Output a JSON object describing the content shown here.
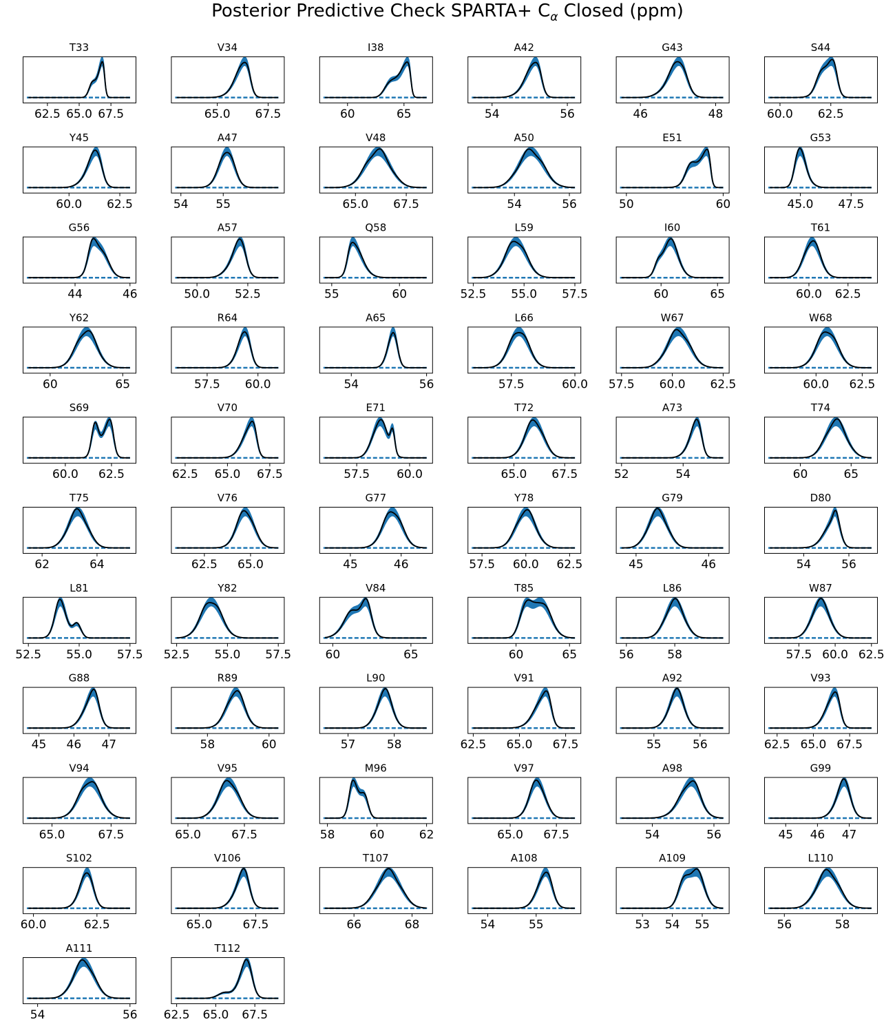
{
  "figure": {
    "title_main": "Posterior Predictive Check SPARTA+ C",
    "title_sub": "α",
    "title_tail": " Closed (ppm)"
  },
  "colors": {
    "band": "#1f77b4",
    "observed": "#000000"
  },
  "chart_data": [
    {
      "type": "area",
      "title": "T33",
      "xlim": [
        61.0,
        69.0
      ],
      "ticks": [
        "62.5",
        "65.0",
        "67.5"
      ],
      "mode": 67.0,
      "sd": 0.45,
      "skew": -3.5,
      "bumps": [
        {
          "x": 66.0,
          "h": 0.25,
          "sd": 0.25
        }
      ]
    },
    {
      "type": "area",
      "title": "V34",
      "xlim": [
        63.0,
        68.0
      ],
      "ticks": [
        "65.0",
        "67.5"
      ],
      "mode": 66.6,
      "sd": 0.55,
      "skew": -3.0,
      "bumps": []
    },
    {
      "type": "area",
      "title": "I38",
      "xlim": [
        58.0,
        67.0
      ],
      "ticks": [
        "60",
        "65"
      ],
      "mode": 65.6,
      "sd": 0.8,
      "skew": -5.0,
      "bumps": [
        {
          "x": 63.8,
          "h": 0.35,
          "sd": 0.5
        }
      ]
    },
    {
      "type": "area",
      "title": "A42",
      "xlim": [
        53.5,
        56.2
      ],
      "ticks": [
        "54",
        "56"
      ],
      "mode": 55.3,
      "sd": 0.32,
      "skew": -3.0,
      "bumps": []
    },
    {
      "type": "area",
      "title": "G43",
      "xlim": [
        45.5,
        48.2
      ],
      "ticks": [
        "46",
        "48"
      ],
      "mode": 47.2,
      "sd": 0.35,
      "skew": -2.0,
      "bumps": []
    },
    {
      "type": "area",
      "title": "S44",
      "xlim": [
        59.5,
        64.5
      ],
      "ticks": [
        "60.0",
        "62.5"
      ],
      "mode": 62.8,
      "sd": 0.55,
      "skew": -3.0,
      "bumps": [
        {
          "x": 62.0,
          "h": 0.25,
          "sd": 0.25
        }
      ]
    },
    {
      "type": "area",
      "title": "Y45",
      "xlim": [
        58.0,
        63.0
      ],
      "ticks": [
        "60.0",
        "62.5"
      ],
      "mode": 61.6,
      "sd": 0.55,
      "skew": -2.5,
      "bumps": []
    },
    {
      "type": "area",
      "title": "A47",
      "xlim": [
        53.9,
        56.3
      ],
      "ticks": [
        "54",
        "55"
      ],
      "mode": 55.2,
      "sd": 0.22,
      "skew": -1.0,
      "bumps": []
    },
    {
      "type": "area",
      "title": "V48",
      "xlim": [
        63.5,
        68.5
      ],
      "ticks": [
        "65.0",
        "67.5"
      ],
      "mode": 66.1,
      "sd": 0.6,
      "skew": 0.0,
      "bumps": []
    },
    {
      "type": "area",
      "title": "A50",
      "xlim": [
        52.5,
        56.2
      ],
      "ticks": [
        "54",
        "56"
      ],
      "mode": 54.6,
      "sd": 0.45,
      "skew": 0.0,
      "bumps": []
    },
    {
      "type": "area",
      "title": "E51",
      "xlim": [
        49.5,
        60.0
      ],
      "ticks": [
        "50",
        "60"
      ],
      "mode": 58.7,
      "sd": 1.3,
      "skew": -6.0,
      "bumps": [
        {
          "x": 56.5,
          "h": 0.3,
          "sd": 0.5
        }
      ]
    },
    {
      "type": "area",
      "title": "G53",
      "xlim": [
        43.5,
        48.5
      ],
      "ticks": [
        "45.0",
        "47.5"
      ],
      "mode": 44.7,
      "sd": 0.45,
      "skew": 2.5,
      "bumps": [
        {
          "x": 45.1,
          "h": 0.3,
          "sd": 0.2
        }
      ]
    },
    {
      "type": "area",
      "title": "G56",
      "xlim": [
        42.3,
        46.0
      ],
      "ticks": [
        "44",
        "46"
      ],
      "mode": 44.9,
      "sd": 0.28,
      "skew": 0.0,
      "bumps": [
        {
          "x": 44.6,
          "h": 0.3,
          "sd": 0.15
        }
      ]
    },
    {
      "type": "area",
      "title": "A57",
      "xlim": [
        49.0,
        54.0
      ],
      "ticks": [
        "50.0",
        "52.5"
      ],
      "mode": 52.4,
      "sd": 0.55,
      "skew": -2.5,
      "bumps": []
    },
    {
      "type": "area",
      "title": "Q58",
      "xlim": [
        54.5,
        62.0
      ],
      "ticks": [
        "55",
        "60"
      ],
      "mode": 56.2,
      "sd": 0.8,
      "skew": 3.0,
      "bumps": []
    },
    {
      "type": "area",
      "title": "L59",
      "xlim": [
        52.5,
        57.5
      ],
      "ticks": [
        "52.5",
        "55.0",
        "57.5"
      ],
      "mode": 54.4,
      "sd": 0.55,
      "skew": 0.5,
      "bumps": []
    },
    {
      "type": "area",
      "title": "I60",
      "xlim": [
        56.5,
        65.5
      ],
      "ticks": [
        "60",
        "65"
      ],
      "mode": 60.8,
      "sd": 0.7,
      "skew": 0.0,
      "bumps": [
        {
          "x": 59.7,
          "h": 0.1,
          "sd": 0.3
        }
      ]
    },
    {
      "type": "area",
      "title": "T61",
      "xlim": [
        57.5,
        64.0
      ],
      "ticks": [
        "60.0",
        "62.5"
      ],
      "mode": 60.0,
      "sd": 0.55,
      "skew": 0.5,
      "bumps": []
    },
    {
      "type": "area",
      "title": "Y62",
      "xlim": [
        58.5,
        65.5
      ],
      "ticks": [
        "60",
        "65"
      ],
      "mode": 62.5,
      "sd": 0.7,
      "skew": 0.0,
      "bumps": []
    },
    {
      "type": "area",
      "title": "R64",
      "xlim": [
        56.0,
        61.0
      ],
      "ticks": [
        "57.5",
        "60.0"
      ],
      "mode": 59.6,
      "sd": 0.45,
      "skew": -2.0,
      "bumps": []
    },
    {
      "type": "area",
      "title": "A65",
      "xlim": [
        53.3,
        56.0
      ],
      "ticks": [
        "54",
        "56"
      ],
      "mode": 55.2,
      "sd": 0.17,
      "skew": -1.5,
      "bumps": []
    },
    {
      "type": "area",
      "title": "L66",
      "xlim": [
        56.0,
        60.0
      ],
      "ticks": [
        "57.5",
        "60.0"
      ],
      "mode": 57.8,
      "sd": 0.38,
      "skew": 0.0,
      "bumps": []
    },
    {
      "type": "area",
      "title": "W67",
      "xlim": [
        57.5,
        62.5
      ],
      "ticks": [
        "57.5",
        "60.0",
        "62.5"
      ],
      "mode": 60.3,
      "sd": 0.55,
      "skew": 0.0,
      "bumps": []
    },
    {
      "type": "area",
      "title": "W68",
      "xlim": [
        57.5,
        63.0
      ],
      "ticks": [
        "60.0",
        "62.5"
      ],
      "mode": 60.6,
      "sd": 0.55,
      "skew": 0.0,
      "bumps": []
    },
    {
      "type": "area",
      "title": "S69",
      "xlim": [
        58.0,
        63.5
      ],
      "ticks": [
        "60.0",
        "62.5"
      ],
      "mode": 62.6,
      "sd": 0.5,
      "skew": -3.0,
      "bumps": [
        {
          "x": 61.6,
          "h": 0.6,
          "sd": 0.18
        }
      ]
    },
    {
      "type": "area",
      "title": "V70",
      "xlim": [
        62.0,
        68.0
      ],
      "ticks": [
        "62.5",
        "65.0",
        "67.5"
      ],
      "mode": 66.7,
      "sd": 0.6,
      "skew": -3.0,
      "bumps": []
    },
    {
      "type": "area",
      "title": "E71",
      "xlim": [
        56.0,
        60.8
      ],
      "ticks": [
        "57.5",
        "60.0"
      ],
      "mode": 58.6,
      "sd": 0.35,
      "skew": 0.0,
      "bumps": [
        {
          "x": 59.2,
          "h": 0.3,
          "sd": 0.1
        }
      ]
    },
    {
      "type": "area",
      "title": "T72",
      "xlim": [
        63.0,
        68.0
      ],
      "ticks": [
        "65.0",
        "67.5"
      ],
      "mode": 66.0,
      "sd": 0.45,
      "skew": 0.0,
      "bumps": []
    },
    {
      "type": "area",
      "title": "A73",
      "xlim": [
        52.0,
        55.3
      ],
      "ticks": [
        "52",
        "54"
      ],
      "mode": 54.6,
      "sd": 0.3,
      "skew": -2.5,
      "bumps": []
    },
    {
      "type": "area",
      "title": "T74",
      "xlim": [
        57.0,
        67.0
      ],
      "ticks": [
        "60",
        "65"
      ],
      "mode": 63.5,
      "sd": 1.0,
      "skew": 0.0,
      "bumps": []
    },
    {
      "type": "area",
      "title": "T75",
      "xlim": [
        61.5,
        65.2
      ],
      "ticks": [
        "62",
        "64"
      ],
      "mode": 63.3,
      "sd": 0.35,
      "skew": 0.0,
      "bumps": []
    },
    {
      "type": "area",
      "title": "V76",
      "xlim": [
        61.0,
        66.5
      ],
      "ticks": [
        "62.5",
        "65.0"
      ],
      "mode": 64.9,
      "sd": 0.5,
      "skew": -0.5,
      "bumps": []
    },
    {
      "type": "area",
      "title": "G77",
      "xlim": [
        44.5,
        46.5
      ],
      "ticks": [
        "45",
        "46"
      ],
      "mode": 45.9,
      "sd": 0.2,
      "skew": -0.5,
      "bumps": []
    },
    {
      "type": "area",
      "title": "Y78",
      "xlim": [
        57.0,
        62.8
      ],
      "ticks": [
        "57.5",
        "60.0",
        "62.5"
      ],
      "mode": 60.0,
      "sd": 0.55,
      "skew": 0.0,
      "bumps": []
    },
    {
      "type": "area",
      "title": "G79",
      "xlim": [
        44.8,
        46.2
      ],
      "ticks": [
        "45",
        "46"
      ],
      "mode": 45.3,
      "sd": 0.13,
      "skew": 0.0,
      "bumps": []
    },
    {
      "type": "area",
      "title": "D80",
      "xlim": [
        52.5,
        57.0
      ],
      "ticks": [
        "54",
        "56"
      ],
      "mode": 55.6,
      "sd": 0.5,
      "skew": -2.5,
      "bumps": [
        {
          "x": 55.4,
          "h": 0.15,
          "sd": 0.1
        }
      ]
    },
    {
      "type": "area",
      "title": "L81",
      "xlim": [
        52.5,
        57.5
      ],
      "ticks": [
        "52.5",
        "55.0",
        "57.5"
      ],
      "mode": 53.9,
      "sd": 0.35,
      "skew": 1.0,
      "bumps": [
        {
          "x": 54.9,
          "h": 0.22,
          "sd": 0.2
        }
      ]
    },
    {
      "type": "area",
      "title": "Y82",
      "xlim": [
        52.5,
        57.5
      ],
      "ticks": [
        "52.5",
        "55.0",
        "57.5"
      ],
      "mode": 54.2,
      "sd": 0.5,
      "skew": 0.0,
      "bumps": []
    },
    {
      "type": "area",
      "title": "V84",
      "xlim": [
        59.5,
        66.0
      ],
      "ticks": [
        "60",
        "65"
      ],
      "mode": 61.4,
      "sd": 0.65,
      "skew": 0.0,
      "bumps": [
        {
          "x": 62.2,
          "h": 0.4,
          "sd": 0.3
        }
      ]
    },
    {
      "type": "area",
      "title": "T85",
      "xlim": [
        56.0,
        65.5
      ],
      "ticks": [
        "60",
        "65"
      ],
      "mode": 62.3,
      "sd": 0.9,
      "skew": 0.0,
      "bumps": [
        {
          "x": 60.8,
          "h": 0.35,
          "sd": 0.5
        }
      ]
    },
    {
      "type": "area",
      "title": "L86",
      "xlim": [
        55.8,
        60.0
      ],
      "ticks": [
        "56",
        "58"
      ],
      "mode": 58.0,
      "sd": 0.38,
      "skew": 0.0,
      "bumps": []
    },
    {
      "type": "area",
      "title": "W87",
      "xlim": [
        55.5,
        62.5
      ],
      "ticks": [
        "57.5",
        "60.0",
        "62.5"
      ],
      "mode": 59.0,
      "sd": 0.6,
      "skew": 0.0,
      "bumps": []
    },
    {
      "type": "area",
      "title": "G88",
      "xlim": [
        44.7,
        47.6
      ],
      "ticks": [
        "45",
        "46",
        "47"
      ],
      "mode": 46.7,
      "sd": 0.3,
      "skew": -2.0,
      "bumps": []
    },
    {
      "type": "area",
      "title": "R89",
      "xlim": [
        57.0,
        60.3
      ],
      "ticks": [
        "58",
        "60"
      ],
      "mode": 59.1,
      "sd": 0.35,
      "skew": -1.0,
      "bumps": []
    },
    {
      "type": "area",
      "title": "L90",
      "xlim": [
        56.5,
        58.7
      ],
      "ticks": [
        "57",
        "58"
      ],
      "mode": 57.9,
      "sd": 0.2,
      "skew": -1.0,
      "bumps": []
    },
    {
      "type": "area",
      "title": "V91",
      "xlim": [
        62.5,
        68.0
      ],
      "ticks": [
        "62.5",
        "65.0",
        "67.5"
      ],
      "mode": 66.7,
      "sd": 0.65,
      "skew": -3.0,
      "bumps": []
    },
    {
      "type": "area",
      "title": "A92",
      "xlim": [
        54.3,
        56.5
      ],
      "ticks": [
        "55",
        "56"
      ],
      "mode": 55.6,
      "sd": 0.2,
      "skew": -1.0,
      "bumps": []
    },
    {
      "type": "area",
      "title": "V93",
      "xlim": [
        62.0,
        69.0
      ],
      "ticks": [
        "62.5",
        "65.0",
        "67.5"
      ],
      "mode": 66.8,
      "sd": 0.7,
      "skew": -2.5,
      "bumps": []
    },
    {
      "type": "area",
      "title": "V94",
      "xlim": [
        64.0,
        68.3
      ],
      "ticks": [
        "65.0",
        "67.5"
      ],
      "mode": 66.6,
      "sd": 0.45,
      "skew": 0.0,
      "bumps": []
    },
    {
      "type": "area",
      "title": "V95",
      "xlim": [
        64.5,
        69.0
      ],
      "ticks": [
        "65.0",
        "67.5"
      ],
      "mode": 66.8,
      "sd": 0.45,
      "skew": 0.0,
      "bumps": []
    },
    {
      "type": "area",
      "title": "M96",
      "xlim": [
        57.9,
        62.0
      ],
      "ticks": [
        "58",
        "60",
        "62"
      ],
      "mode": 58.9,
      "sd": 0.3,
      "skew": 2.0,
      "bumps": [
        {
          "x": 59.5,
          "h": 0.35,
          "sd": 0.15
        }
      ]
    },
    {
      "type": "area",
      "title": "V97",
      "xlim": [
        63.0,
        68.5
      ],
      "ticks": [
        "65.0",
        "67.5"
      ],
      "mode": 66.3,
      "sd": 0.45,
      "skew": 0.5,
      "bumps": []
    },
    {
      "type": "area",
      "title": "A98",
      "xlim": [
        53.0,
        56.3
      ],
      "ticks": [
        "54",
        "56"
      ],
      "mode": 55.5,
      "sd": 0.45,
      "skew": -1.5,
      "bumps": []
    },
    {
      "type": "area",
      "title": "G99",
      "xlim": [
        44.5,
        47.7
      ],
      "ticks": [
        "45",
        "46",
        "47"
      ],
      "mode": 47.0,
      "sd": 0.3,
      "skew": -1.5,
      "bumps": []
    },
    {
      "type": "area",
      "title": "S102",
      "xlim": [
        59.8,
        63.8
      ],
      "ticks": [
        "60.0",
        "62.5"
      ],
      "mode": 62.3,
      "sd": 0.35,
      "skew": -1.5,
      "bumps": []
    },
    {
      "type": "area",
      "title": "V106",
      "xlim": [
        64.0,
        68.5
      ],
      "ticks": [
        "65.0",
        "67.5"
      ],
      "mode": 67.2,
      "sd": 0.45,
      "skew": -2.0,
      "bumps": []
    },
    {
      "type": "area",
      "title": "T107",
      "xlim": [
        65.0,
        68.5
      ],
      "ticks": [
        "66",
        "68"
      ],
      "mode": 67.2,
      "sd": 0.4,
      "skew": 0.0,
      "bumps": []
    },
    {
      "type": "area",
      "title": "A108",
      "xlim": [
        53.7,
        55.8
      ],
      "ticks": [
        "54",
        "55"
      ],
      "mode": 55.3,
      "sd": 0.2,
      "skew": -1.5,
      "bumps": []
    },
    {
      "type": "area",
      "title": "A109",
      "xlim": [
        52.3,
        55.7
      ],
      "ticks": [
        "53",
        "54",
        "55"
      ],
      "mode": 55.0,
      "sd": 0.3,
      "skew": -1.0,
      "bumps": [
        {
          "x": 54.4,
          "h": 0.45,
          "sd": 0.2
        }
      ]
    },
    {
      "type": "area",
      "title": "L110",
      "xlim": [
        55.5,
        59.0
      ],
      "ticks": [
        "56",
        "58"
      ],
      "mode": 57.5,
      "sd": 0.38,
      "skew": 0.0,
      "bumps": []
    },
    {
      "type": "area",
      "title": "A111",
      "xlim": [
        53.8,
        56.0
      ],
      "ticks": [
        "54",
        "56"
      ],
      "mode": 55.0,
      "sd": 0.22,
      "skew": 0.0,
      "bumps": []
    },
    {
      "type": "area",
      "title": "T112",
      "xlim": [
        62.5,
        69.0
      ],
      "ticks": [
        "62.5",
        "65.0",
        "67.5"
      ],
      "mode": 67.3,
      "sd": 0.6,
      "skew": -2.0,
      "bumps": [
        {
          "x": 65.5,
          "h": 0.1,
          "sd": 0.4
        }
      ]
    }
  ]
}
